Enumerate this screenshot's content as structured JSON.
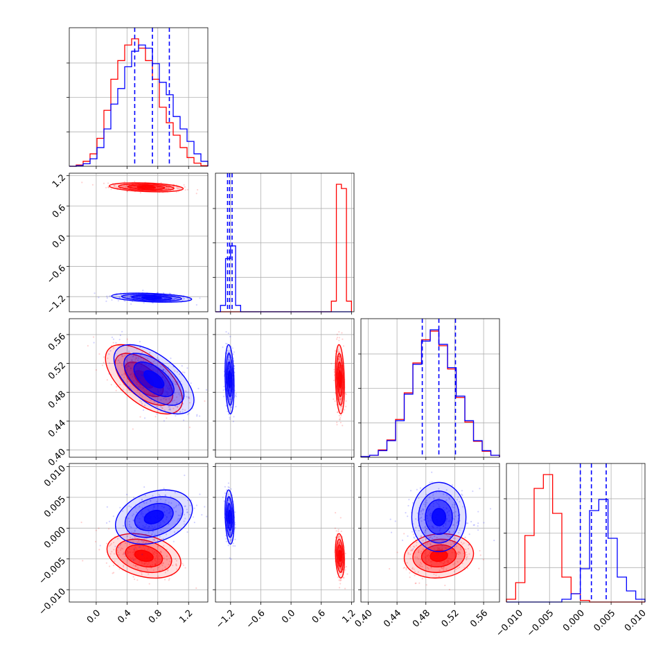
{
  "chart_data": {
    "type": "corner",
    "parameters": 4,
    "grid": true,
    "colors": {
      "blue": "#0000ff",
      "red": "#ff0000",
      "grid": "#b0b0b0",
      "axis": "#000000"
    },
    "axes": [
      {
        "range": [
          -0.35,
          1.45
        ],
        "ticks": [
          0.0,
          0.4,
          0.8,
          1.2
        ],
        "tick_labels": [
          "0.0",
          "0.4",
          "0.8",
          "1.2"
        ]
      },
      {
        "range": [
          -1.5,
          1.25
        ],
        "ticks": [
          -1.2,
          -0.6,
          0.0,
          0.6,
          1.2
        ],
        "tick_labels": [
          "−1.2",
          "−0.6",
          "0.0",
          "0.6",
          "1.2"
        ]
      },
      {
        "range": [
          0.39,
          0.582
        ],
        "ticks": [
          0.4,
          0.44,
          0.48,
          0.52,
          0.56
        ],
        "tick_labels": [
          "0.40",
          "0.44",
          "0.48",
          "0.52",
          "0.56"
        ]
      },
      {
        "range": [
          -0.012,
          0.0105
        ],
        "ticks": [
          -0.01,
          -0.005,
          0.0,
          0.005,
          0.01
        ],
        "tick_labels": [
          "−0.010",
          "−0.005",
          "0.000",
          "0.005",
          "0.010"
        ]
      }
    ],
    "histograms": [
      {
        "param": 0,
        "bins": [
          -0.35,
          -0.26,
          -0.17,
          -0.08,
          0.01,
          0.1,
          0.19,
          0.28,
          0.37,
          0.46,
          0.55,
          0.64,
          0.73,
          0.82,
          0.91,
          1.0,
          1.09,
          1.18,
          1.27,
          1.36,
          1.45
        ],
        "blue_counts": [
          0,
          1,
          4,
          12,
          30,
          60,
          100,
          125,
          160,
          185,
          195,
          190,
          165,
          135,
          115,
          80,
          60,
          40,
          20,
          8
        ],
        "red_counts": [
          0,
          2,
          8,
          20,
          45,
          90,
          140,
          170,
          195,
          205,
          190,
          170,
          140,
          95,
          70,
          50,
          30,
          14,
          5,
          1
        ],
        "quantiles_blue": [
          0.5,
          0.73,
          0.95
        ]
      },
      {
        "param": 1,
        "bins": [
          -1.5,
          -1.4,
          -1.3,
          -1.2,
          -1.1,
          -1.0,
          -0.9,
          -0.8,
          -0.7,
          -0.6,
          -0.5,
          -0.4,
          -0.3,
          -0.2,
          -0.1,
          0.0,
          0.1,
          0.2,
          0.3,
          0.4,
          0.5,
          0.6,
          0.7,
          0.8,
          0.9,
          1.0,
          1.1,
          1.2
        ],
        "blue_counts": [
          0,
          3,
          25,
          31,
          3,
          0,
          0,
          0,
          0,
          0,
          0,
          0,
          0,
          0,
          0,
          0,
          0,
          0,
          0,
          0,
          0,
          0,
          0,
          0,
          0,
          0,
          0
        ],
        "red_counts": [
          0,
          0,
          0,
          0,
          0,
          0,
          0,
          0,
          0,
          0,
          0,
          0,
          0,
          0,
          0,
          0,
          0,
          0,
          0,
          0,
          0,
          0,
          0,
          5,
          60,
          58,
          5
        ],
        "quantiles_blue": [
          -1.26,
          -1.22,
          -1.17
        ]
      },
      {
        "param": 2,
        "bins": [
          0.39,
          0.402,
          0.414,
          0.426,
          0.438,
          0.45,
          0.462,
          0.474,
          0.486,
          0.498,
          0.51,
          0.522,
          0.534,
          0.546,
          0.558,
          0.57,
          0.582
        ],
        "blue_counts": [
          1,
          3,
          10,
          25,
          55,
          95,
          140,
          175,
          192,
          170,
          135,
          92,
          55,
          25,
          10,
          3
        ],
        "red_counts": [
          1,
          3,
          11,
          26,
          57,
          97,
          142,
          177,
          190,
          168,
          133,
          90,
          53,
          24,
          9,
          3
        ],
        "quantiles_blue": [
          0.475,
          0.498,
          0.521
        ]
      },
      {
        "param": 3,
        "bins": [
          -0.012,
          -0.0105,
          -0.009,
          -0.0075,
          -0.006,
          -0.0045,
          -0.003,
          -0.0015,
          0.0,
          0.0015,
          0.003,
          0.0045,
          0.006,
          0.0075,
          0.009,
          0.0105
        ],
        "blue_counts": [
          0,
          0,
          0,
          0,
          0,
          0,
          5,
          15,
          60,
          165,
          185,
          115,
          45,
          20,
          5
        ],
        "red_counts": [
          5,
          35,
          120,
          205,
          230,
          160,
          45,
          15,
          3,
          0,
          0,
          0,
          0,
          0,
          0
        ],
        "quantiles_blue": [
          0.0,
          0.0018,
          0.0042
        ]
      }
    ],
    "scatter_panels": [
      {
        "x_param": 0,
        "y_param": 1,
        "blue": {
          "mean": [
            0.72,
            -1.22
          ],
          "sd": [
            0.26,
            0.045
          ],
          "corr": -0.35
        },
        "red": {
          "mean": [
            0.65,
            0.97
          ],
          "sd": [
            0.24,
            0.045
          ],
          "corr": -0.3
        }
      },
      {
        "x_param": 0,
        "y_param": 2,
        "blue": {
          "mean": [
            0.75,
            0.498
          ],
          "sd": [
            0.26,
            0.024
          ],
          "corr": -0.6
        },
        "red": {
          "mean": [
            0.62,
            0.498
          ],
          "sd": [
            0.25,
            0.024
          ],
          "corr": -0.6
        }
      },
      {
        "x_param": 1,
        "y_param": 2,
        "blue": {
          "mean": [
            -1.22,
            0.498
          ],
          "sd": [
            0.045,
            0.024
          ],
          "corr": -0.2
        },
        "red": {
          "mean": [
            0.97,
            0.498
          ],
          "sd": [
            0.045,
            0.024
          ],
          "corr": -0.2
        }
      },
      {
        "x_param": 0,
        "y_param": 3,
        "blue": {
          "mean": [
            0.75,
            0.0018
          ],
          "sd": [
            0.25,
            0.0022
          ],
          "corr": 0.3
        },
        "red": {
          "mean": [
            0.62,
            -0.0045
          ],
          "sd": [
            0.24,
            0.0018
          ],
          "corr": -0.3
        }
      },
      {
        "x_param": 1,
        "y_param": 3,
        "blue": {
          "mean": [
            -1.22,
            0.0018
          ],
          "sd": [
            0.045,
            0.0022
          ],
          "corr": -0.2
        },
        "red": {
          "mean": [
            0.97,
            -0.0045
          ],
          "sd": [
            0.045,
            0.0018
          ],
          "corr": -0.2
        }
      },
      {
        "x_param": 2,
        "y_param": 3,
        "blue": {
          "mean": [
            0.498,
            0.0018
          ],
          "sd": [
            0.024,
            0.0022
          ],
          "corr": 0.0
        },
        "red": {
          "mean": [
            0.498,
            -0.0045
          ],
          "sd": [
            0.024,
            0.0018
          ],
          "corr": 0.1
        }
      }
    ]
  }
}
